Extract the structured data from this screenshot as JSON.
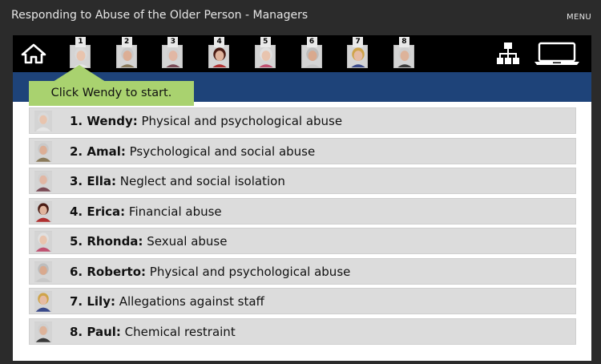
{
  "app": {
    "title": "Responding to Abuse of the Older Person - Managers",
    "menu_label": "MENU"
  },
  "toolbar": {
    "home_icon": "home-icon",
    "sitemap_icon": "sitemap-icon",
    "laptop_icon": "laptop-icon",
    "tabs": [
      {
        "number": "1",
        "hair": "#d9d9d9",
        "top": "#e6e6e6",
        "skin": "#e8c4ae"
      },
      {
        "number": "2",
        "hair": "#c9c9c9",
        "top": "#8a7a5a",
        "skin": "#dcae95"
      },
      {
        "number": "3",
        "hair": "#d0d0d0",
        "top": "#7a4a55",
        "skin": "#e1b7a4"
      },
      {
        "number": "4",
        "hair": "#4a1c14",
        "top": "#b03030",
        "skin": "#e0b49d"
      },
      {
        "number": "5",
        "hair": "#e0e0e0",
        "top": "#c05070",
        "skin": "#e8c4ae"
      },
      {
        "number": "6",
        "hair": "#bdbdbd",
        "top": "#c8c8c8",
        "skin": "#d9a98e"
      },
      {
        "number": "7",
        "hair": "#cfa44a",
        "top": "#3a4a8a",
        "skin": "#e5bba4"
      },
      {
        "number": "8",
        "hair": "#cfcfcf",
        "top": "#3a3a3a",
        "skin": "#ddb39a"
      }
    ]
  },
  "callout": {
    "text": "Click Wendy to start."
  },
  "cases": [
    {
      "name": "1. Wendy:",
      "topic": " Physical and psychological abuse",
      "hair": "#d9d9d9",
      "top": "#e6e6e6",
      "skin": "#e8c4ae"
    },
    {
      "name": "2. Amal:",
      "topic": " Psychological and social abuse",
      "hair": "#c9c9c9",
      "top": "#8a7a5a",
      "skin": "#dcae95"
    },
    {
      "name": "3. Ella:",
      "topic": " Neglect and social isolation",
      "hair": "#d0d0d0",
      "top": "#7a4a55",
      "skin": "#e1b7a4"
    },
    {
      "name": "4. Erica:",
      "topic": " Financial abuse",
      "hair": "#4a1c14",
      "top": "#b03030",
      "skin": "#e0b49d"
    },
    {
      "name": "5. Rhonda:",
      "topic": " Sexual abuse",
      "hair": "#e0e0e0",
      "top": "#c05070",
      "skin": "#e8c4ae"
    },
    {
      "name": "6. Roberto:",
      "topic": " Physical and psychological abuse",
      "hair": "#bdbdbd",
      "top": "#c8c8c8",
      "skin": "#d9a98e"
    },
    {
      "name": "7. Lily:",
      "topic": " Allegations against staff",
      "hair": "#cfa44a",
      "top": "#3a4a8a",
      "skin": "#e5bba4"
    },
    {
      "name": "8. Paul:",
      "topic": " Chemical restraint",
      "hair": "#cfcfcf",
      "top": "#3a3a3a",
      "skin": "#ddb39a"
    }
  ]
}
